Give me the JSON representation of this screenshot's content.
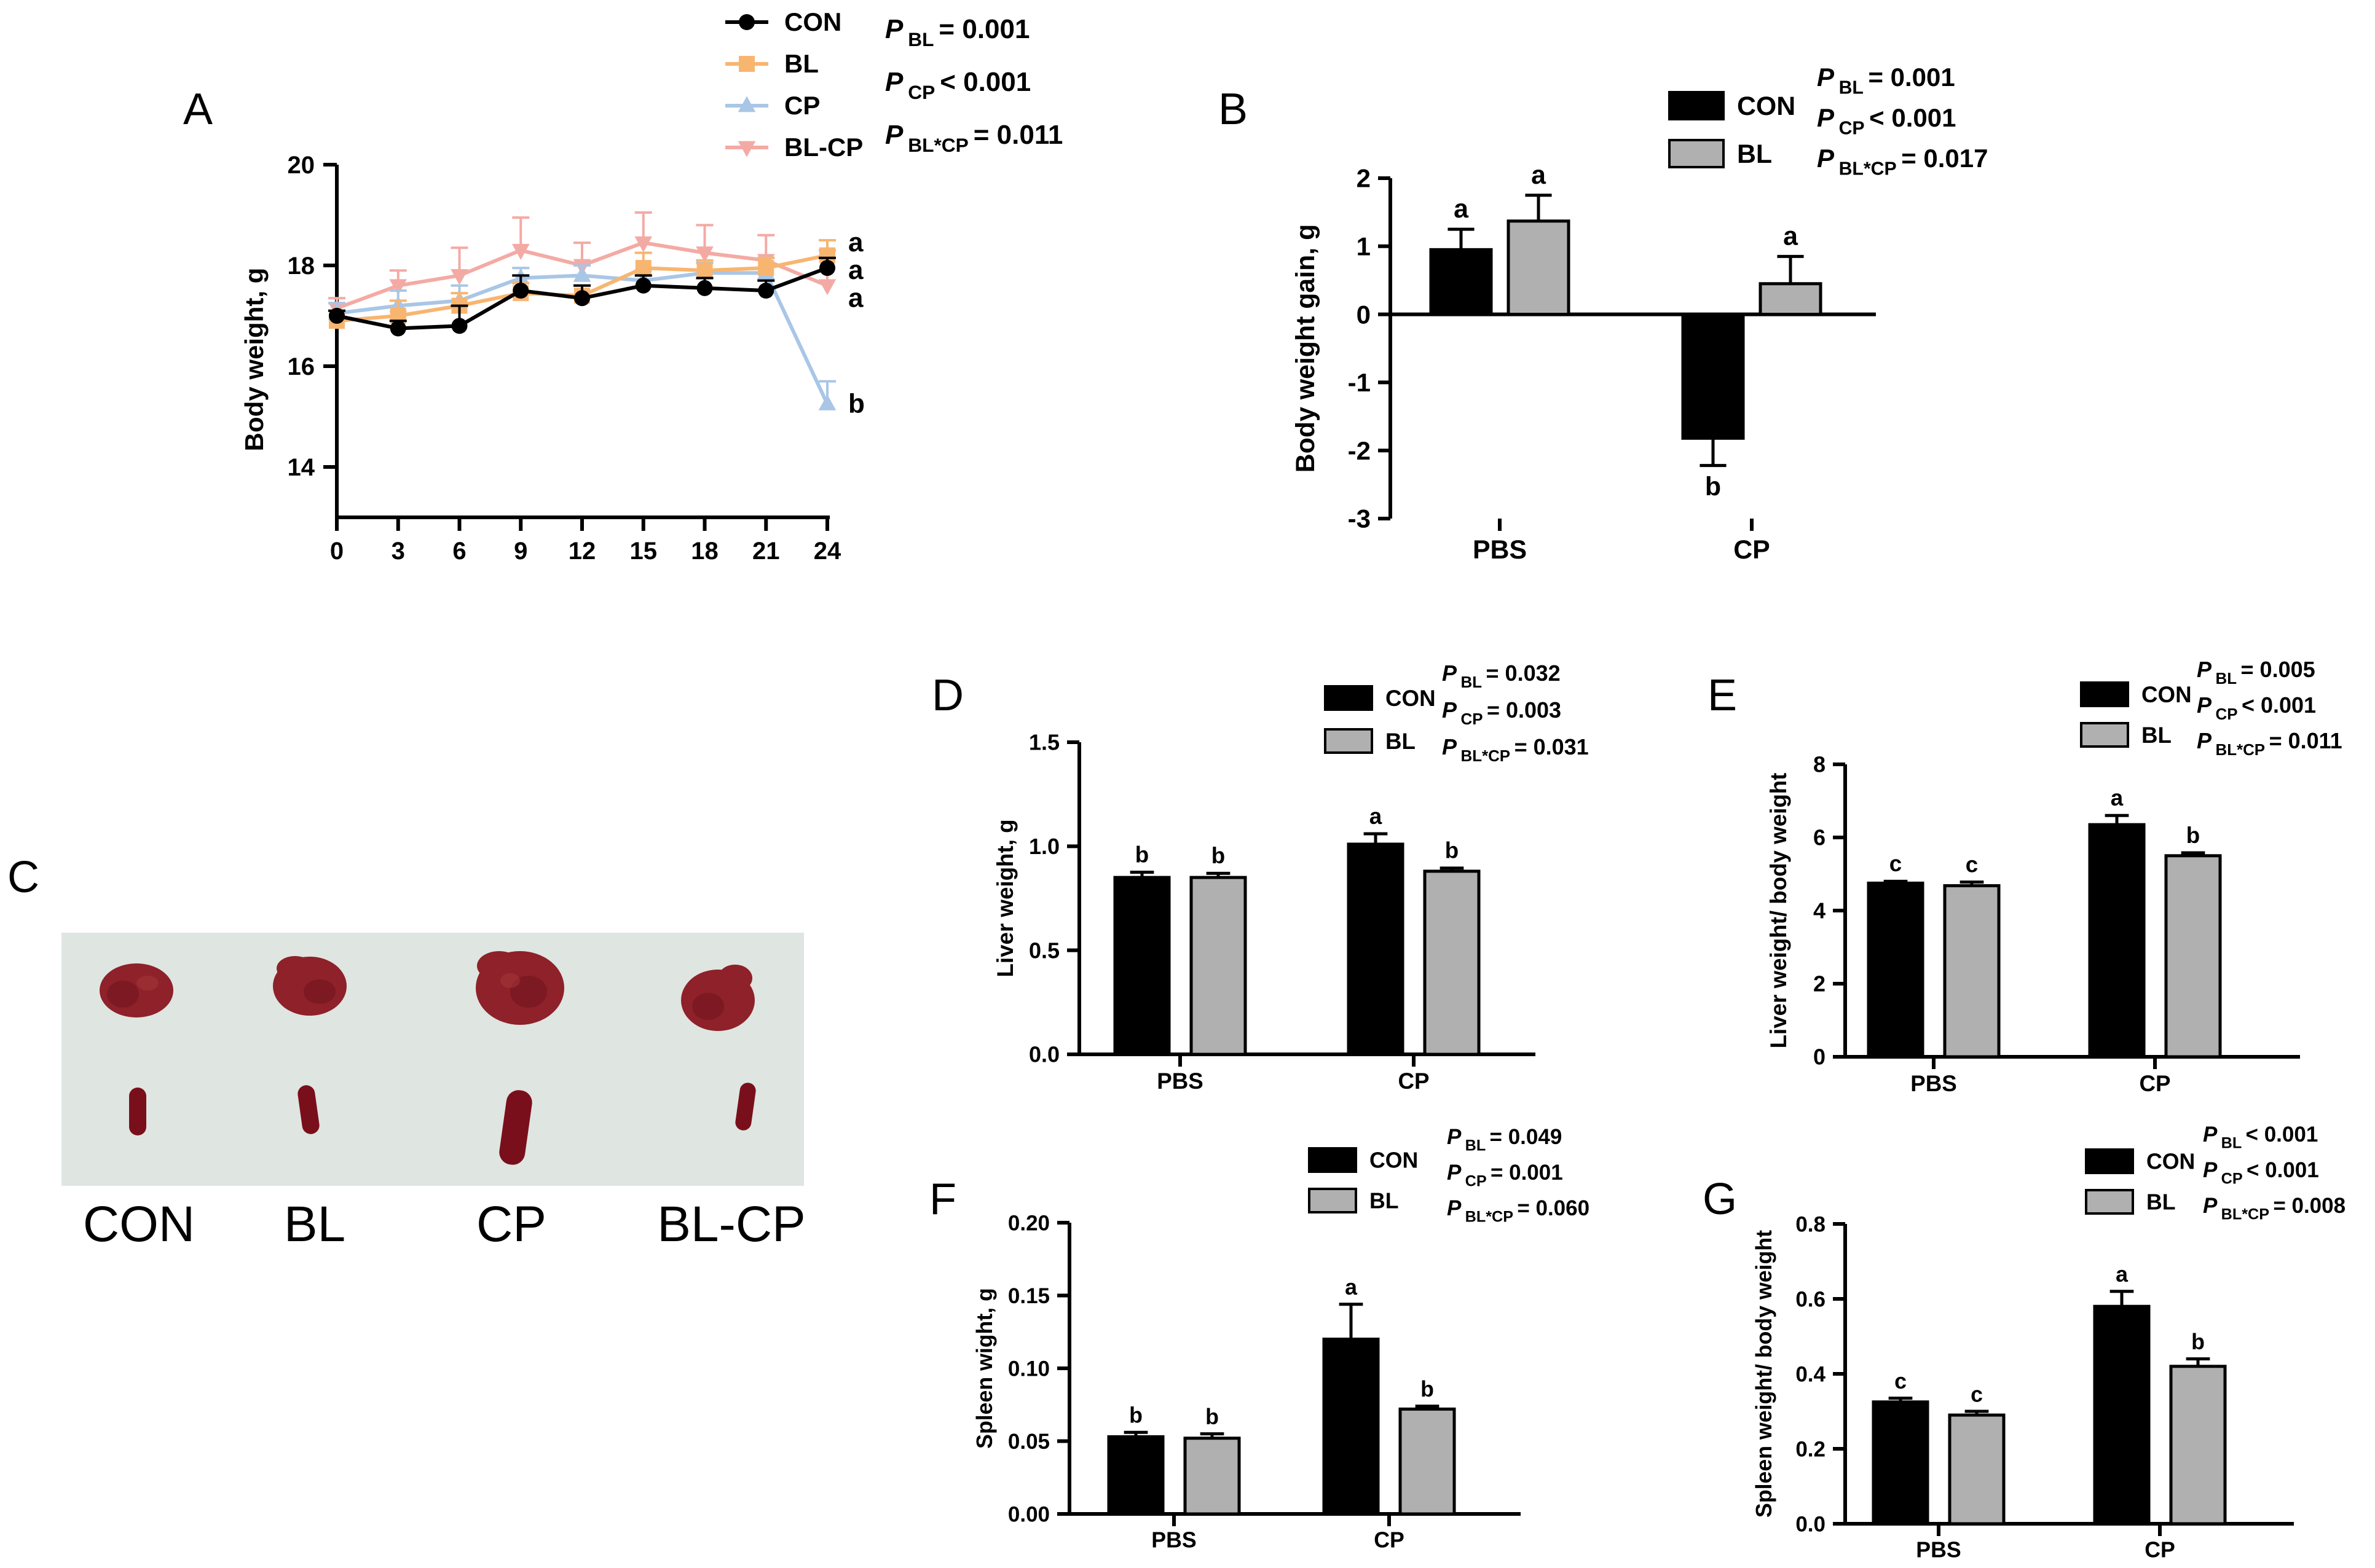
{
  "panels": {
    "A": "A",
    "B": "B",
    "C": "C",
    "D": "D",
    "E": "E",
    "F": "F",
    "G": "G"
  },
  "colors": {
    "CON": "#000000",
    "BL": "#f8b570",
    "CP": "#a9c6e6",
    "BLCP": "#f4aaa4",
    "bar_con": "#000000",
    "bar_bl": "#b0b0b0",
    "liver": "#8e2129",
    "spleen": "#7a0f1c"
  },
  "chart_data": [
    {
      "id": "A",
      "type": "line",
      "ylabel": "Body weight, g",
      "xlabel": "",
      "x": [
        0,
        3,
        6,
        9,
        12,
        15,
        18,
        21,
        24
      ],
      "x_ticks": [
        "0",
        "3",
        "6",
        "9",
        "12",
        "15",
        "18",
        "21",
        "24"
      ],
      "ylim": [
        13,
        20
      ],
      "y_ticks": [
        "14",
        "16",
        "18",
        "20"
      ],
      "y_tick_values": [
        14,
        16,
        18,
        20
      ],
      "series": [
        {
          "name": "CON",
          "marker": "circle",
          "values": [
            17.0,
            16.75,
            16.8,
            17.5,
            17.35,
            17.6,
            17.55,
            17.5,
            17.95
          ],
          "err": [
            0.1,
            0.15,
            0.4,
            0.3,
            0.25,
            0.2,
            0.2,
            0.2,
            0.2
          ]
        },
        {
          "name": "BL",
          "marker": "square",
          "values": [
            16.9,
            17.0,
            17.2,
            17.45,
            17.4,
            17.95,
            17.9,
            17.95,
            18.2
          ],
          "err": [
            0.2,
            0.3,
            0.25,
            0.2,
            0.2,
            0.3,
            0.2,
            0.2,
            0.3
          ]
        },
        {
          "name": "CP",
          "marker": "triangle-up",
          "values": [
            17.05,
            17.2,
            17.3,
            17.75,
            17.8,
            17.7,
            17.85,
            17.85,
            15.25
          ],
          "err": [
            0.2,
            0.3,
            0.3,
            0.2,
            0.2,
            0.2,
            0.2,
            0.3,
            0.45
          ]
        },
        {
          "name": "BL-CP",
          "marker": "triangle-down",
          "values": [
            17.15,
            17.6,
            17.8,
            18.3,
            18.0,
            18.45,
            18.25,
            18.1,
            17.6
          ],
          "err": [
            0.2,
            0.3,
            0.55,
            0.65,
            0.45,
            0.6,
            0.55,
            0.5,
            0.7
          ]
        }
      ],
      "end_letters": [
        {
          "text": "a",
          "value": 18.45
        },
        {
          "text": "a",
          "value": 17.9
        },
        {
          "text": "a",
          "value": 17.35
        },
        {
          "text": "b",
          "value": 15.25
        }
      ],
      "legend": [
        "CON",
        "BL",
        "CP",
        "BL-CP"
      ],
      "legend_position": "top",
      "stats": {
        "bl_sub": "BL",
        "bl_val": "= 0.001",
        "cp_sub": "CP",
        "cp_val": "< 0.001",
        "int_sub": "BL*CP",
        "int_val": "= 0.011"
      }
    },
    {
      "id": "B",
      "type": "bar",
      "ylabel": "Body weight gain, g",
      "categories": [
        "PBS",
        "CP"
      ],
      "ylim": [
        -3,
        2
      ],
      "y_ticks": [
        "-3",
        "-2",
        "-1",
        "0",
        "1",
        "2"
      ],
      "y_tick_values": [
        -3,
        -2,
        -1,
        0,
        1,
        2
      ],
      "series": [
        {
          "name": "CON",
          "values": [
            0.95,
            -1.82
          ],
          "err": [
            0.3,
            0.4
          ],
          "letters": [
            "a",
            "b"
          ]
        },
        {
          "name": "BL",
          "values": [
            1.37,
            0.45
          ],
          "err": [
            0.38,
            0.4
          ],
          "letters": [
            "a",
            "a"
          ]
        }
      ],
      "legend": [
        "CON",
        "BL"
      ],
      "stats": {
        "bl_sub": "BL",
        "bl_val": "= 0.001",
        "cp_sub": "CP",
        "cp_val": "< 0.001",
        "int_sub": "BL*CP",
        "int_val": "= 0.017"
      }
    },
    {
      "id": "D",
      "type": "bar",
      "ylabel": "Liver weight, g",
      "categories": [
        "PBS",
        "CP"
      ],
      "ylim": [
        0,
        1.5
      ],
      "y_ticks": [
        "0.0",
        "0.5",
        "1.0",
        "1.5"
      ],
      "y_tick_values": [
        0,
        0.5,
        1.0,
        1.5
      ],
      "series": [
        {
          "name": "CON",
          "values": [
            0.85,
            1.01
          ],
          "err": [
            0.025,
            0.05
          ],
          "letters": [
            "b",
            "a"
          ]
        },
        {
          "name": "BL",
          "values": [
            0.85,
            0.88
          ],
          "err": [
            0.02,
            0.015
          ],
          "letters": [
            "b",
            "b"
          ]
        }
      ],
      "legend": [
        "CON",
        "BL"
      ],
      "stats": {
        "bl_sub": "BL",
        "bl_val": "= 0.032",
        "cp_sub": "CP",
        "cp_val": "= 0.003",
        "int_sub": "BL*CP",
        "int_val": "= 0.031"
      }
    },
    {
      "id": "E",
      "type": "bar",
      "ylabel": "Liver weight/ body weight",
      "categories": [
        "PBS",
        "CP"
      ],
      "ylim": [
        0,
        8
      ],
      "y_ticks": [
        "0",
        "2",
        "4",
        "6",
        "8"
      ],
      "y_tick_values": [
        0,
        2,
        4,
        6,
        8
      ],
      "series": [
        {
          "name": "CON",
          "values": [
            4.75,
            6.35
          ],
          "err": [
            0.05,
            0.25
          ],
          "letters": [
            "c",
            "a"
          ]
        },
        {
          "name": "BL",
          "values": [
            4.68,
            5.5
          ],
          "err": [
            0.1,
            0.08
          ],
          "letters": [
            "c",
            "b"
          ]
        }
      ],
      "legend": [
        "CON",
        "BL"
      ],
      "stats": {
        "bl_sub": "BL",
        "bl_val": "= 0.005",
        "cp_sub": "CP",
        "cp_val": "< 0.001",
        "int_sub": "BL*CP",
        "int_val": "= 0.011"
      }
    },
    {
      "id": "F",
      "type": "bar",
      "ylabel": "Spleen wight, g",
      "categories": [
        "PBS",
        "CP"
      ],
      "ylim": [
        0,
        0.2
      ],
      "y_ticks": [
        "0.00",
        "0.05",
        "0.10",
        "0.15",
        "0.20"
      ],
      "y_tick_values": [
        0,
        0.05,
        0.1,
        0.15,
        0.2
      ],
      "series": [
        {
          "name": "CON",
          "values": [
            0.053,
            0.12
          ],
          "err": [
            0.003,
            0.024
          ],
          "letters": [
            "b",
            "a"
          ]
        },
        {
          "name": "BL",
          "values": [
            0.052,
            0.072
          ],
          "err": [
            0.003,
            0.002
          ],
          "letters": [
            "b",
            "b"
          ]
        }
      ],
      "legend": [
        "CON",
        "BL"
      ],
      "stats": {
        "bl_sub": "BL",
        "bl_val": "= 0.049",
        "cp_sub": "CP",
        "cp_val": "= 0.001",
        "int_sub": "BL*CP",
        "int_val": "= 0.060"
      }
    },
    {
      "id": "G",
      "type": "bar",
      "ylabel": "Spleen weight/ body weight",
      "categories": [
        "PBS",
        "CP"
      ],
      "ylim": [
        0,
        0.8
      ],
      "y_ticks": [
        "0.0",
        "0.2",
        "0.4",
        "0.6",
        "0.8"
      ],
      "y_tick_values": [
        0,
        0.2,
        0.4,
        0.6,
        0.8
      ],
      "series": [
        {
          "name": "CON",
          "values": [
            0.325,
            0.58
          ],
          "err": [
            0.01,
            0.04
          ],
          "letters": [
            "c",
            "a"
          ]
        },
        {
          "name": "BL",
          "values": [
            0.29,
            0.42
          ],
          "err": [
            0.01,
            0.02
          ],
          "letters": [
            "c",
            "b"
          ]
        }
      ],
      "legend": [
        "CON",
        "BL"
      ],
      "stats": {
        "bl_sub": "BL",
        "bl_val": "< 0.001",
        "cp_sub": "CP",
        "cp_val": "< 0.001",
        "int_sub": "BL*CP",
        "int_val": "= 0.008"
      }
    }
  ],
  "photo": {
    "labels": [
      "CON",
      "BL",
      "CP",
      "BL-CP"
    ]
  }
}
